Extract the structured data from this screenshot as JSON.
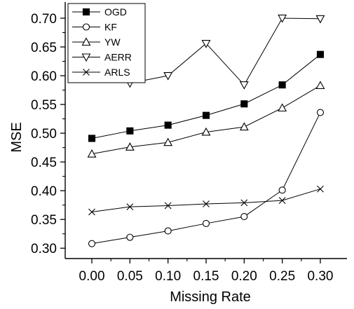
{
  "chart_data": {
    "type": "line",
    "xlabel": "Missing Rate",
    "ylabel": "MSE",
    "xlim": [
      -0.035,
      0.335
    ],
    "ylim": [
      0.282,
      0.728
    ],
    "x": [
      0.0,
      0.05,
      0.1,
      0.15,
      0.2,
      0.25,
      0.3
    ],
    "x_tick_labels": [
      "0.00",
      "0.05",
      "0.10",
      "0.15",
      "0.20",
      "0.25",
      "0.30"
    ],
    "y_ticks": [
      0.3,
      0.35,
      0.4,
      0.45,
      0.5,
      0.55,
      0.6,
      0.65,
      0.7
    ],
    "y_tick_labels": [
      "0.30",
      "0.35",
      "0.40",
      "0.45",
      "0.50",
      "0.55",
      "0.60",
      "0.65",
      "0.70"
    ],
    "grid": false,
    "legend_position": "top-left",
    "series": [
      {
        "name": "OGD",
        "marker": "filled-square",
        "values": [
          0.491,
          0.504,
          0.514,
          0.531,
          0.551,
          0.584,
          0.637
        ]
      },
      {
        "name": "KF",
        "marker": "open-circle",
        "values": [
          0.308,
          0.319,
          0.33,
          0.343,
          0.355,
          0.401,
          0.536
        ]
      },
      {
        "name": "YW",
        "marker": "open-triangle-up",
        "values": [
          0.464,
          0.476,
          0.484,
          0.502,
          0.511,
          0.544,
          0.583
        ]
      },
      {
        "name": "AERR",
        "marker": "open-triangle-down",
        "values": [
          0.612,
          0.587,
          0.6,
          0.656,
          0.584,
          0.7,
          0.699
        ]
      },
      {
        "name": "ARLS",
        "marker": "x-cross",
        "values": [
          0.363,
          0.372,
          0.374,
          0.377,
          0.379,
          0.383,
          0.403
        ]
      }
    ]
  }
}
